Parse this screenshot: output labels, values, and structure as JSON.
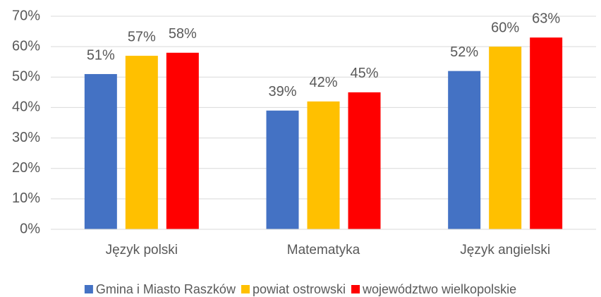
{
  "chart_data": {
    "type": "bar",
    "categories": [
      "Język polski",
      "Matematyka",
      "Język angielski"
    ],
    "series": [
      {
        "name": "Gmina i Miasto Raszków",
        "color": "#4472c4",
        "values": [
          51,
          39,
          52
        ],
        "value_labels": [
          "51%",
          "39%",
          "52%"
        ]
      },
      {
        "name": "powiat ostrowski",
        "color": "#ffc000",
        "values": [
          57,
          42,
          60
        ],
        "value_labels": [
          "57%",
          "42%",
          "60%"
        ]
      },
      {
        "name": "województwo wielkopolskie",
        "color": "#ff0000",
        "values": [
          58,
          45,
          63
        ],
        "value_labels": [
          "58%",
          "45%",
          "63%"
        ]
      }
    ],
    "ylim": [
      0,
      70
    ],
    "yticks": [
      {
        "value": 0,
        "label": "0%"
      },
      {
        "value": 10,
        "label": "10%"
      },
      {
        "value": 20,
        "label": "20%"
      },
      {
        "value": 30,
        "label": "30%"
      },
      {
        "value": 40,
        "label": "40%"
      },
      {
        "value": 50,
        "label": "50%"
      },
      {
        "value": 60,
        "label": "60%"
      },
      {
        "value": 70,
        "label": "70%"
      }
    ],
    "grid": true,
    "legend": "bottom"
  }
}
